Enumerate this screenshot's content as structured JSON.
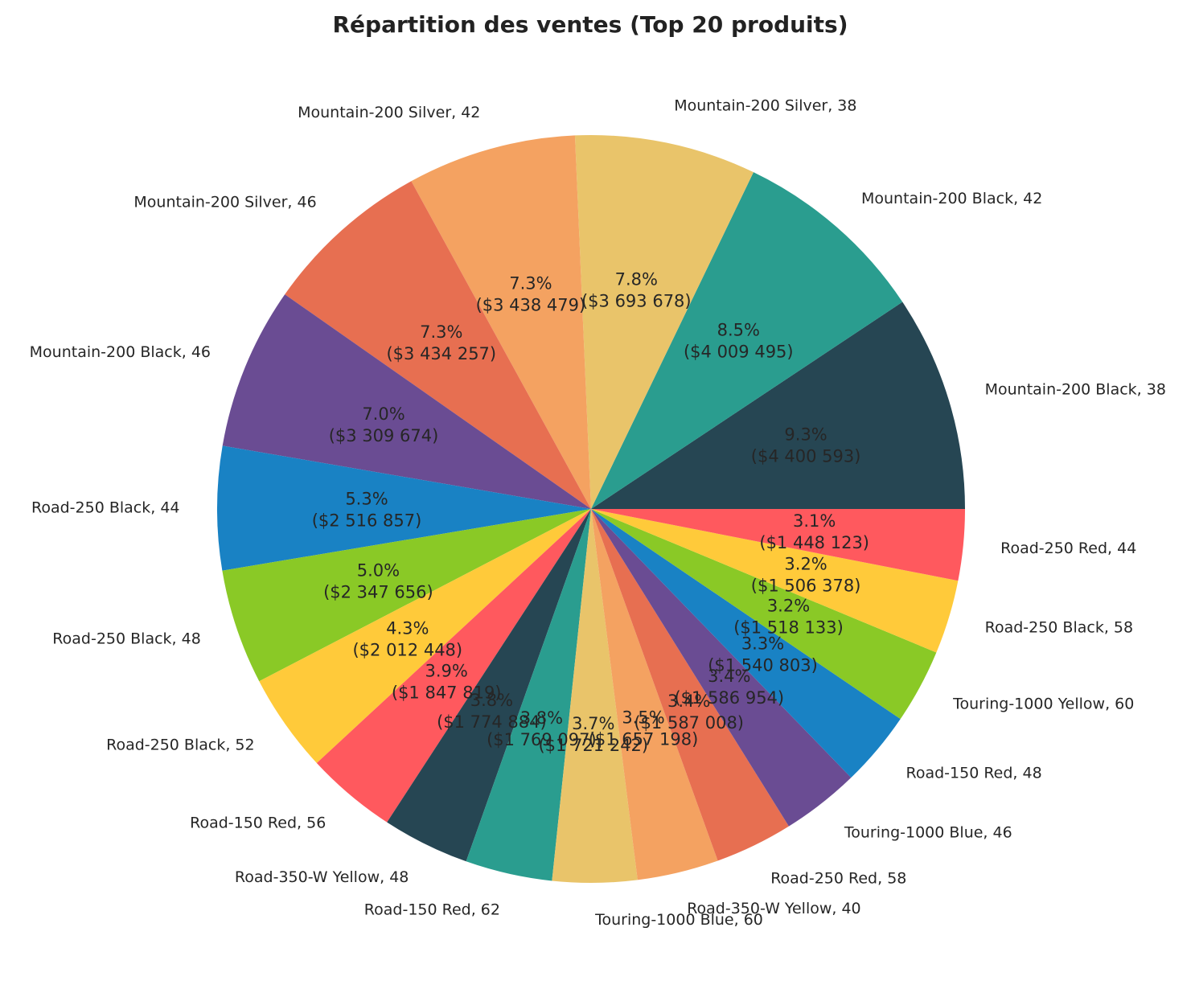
{
  "chart_data": {
    "type": "pie",
    "title": "Répartition des ventes (Top 20 produits)",
    "start_angle_deg": 0,
    "direction": "counterclockwise",
    "slices": [
      {
        "label": "Mountain-200 Black, 38",
        "value": 4400593,
        "value_text": "($4 400 593)",
        "percent": "9.3%",
        "color": "#264653"
      },
      {
        "label": "Mountain-200 Black, 42",
        "value": 4009495,
        "value_text": "($4 009 495)",
        "percent": "8.5%",
        "color": "#2a9d8f"
      },
      {
        "label": "Mountain-200 Silver, 38",
        "value": 3693678,
        "value_text": "($3 693 678)",
        "percent": "7.8%",
        "color": "#e9c46a"
      },
      {
        "label": "Mountain-200 Silver, 42",
        "value": 3438479,
        "value_text": "($3 438 479)",
        "percent": "7.3%",
        "color": "#f4a261"
      },
      {
        "label": "Mountain-200 Silver, 46",
        "value": 3434257,
        "value_text": "($3 434 257)",
        "percent": "7.3%",
        "color": "#e76f51"
      },
      {
        "label": "Mountain-200 Black, 46",
        "value": 3309674,
        "value_text": "($3 309 674)",
        "percent": "7.0%",
        "color": "#6a4c93"
      },
      {
        "label": "Road-250 Black, 44",
        "value": 2516857,
        "value_text": "($2 516 857)",
        "percent": "5.3%",
        "color": "#1982c4"
      },
      {
        "label": "Road-250 Black, 48",
        "value": 2347656,
        "value_text": "($2 347 656)",
        "percent": "5.0%",
        "color": "#8ac926"
      },
      {
        "label": "Road-250 Black, 52",
        "value": 2012448,
        "value_text": "($2 012 448)",
        "percent": "4.3%",
        "color": "#ffca3a"
      },
      {
        "label": "Road-150 Red, 56",
        "value": 1847819,
        "value_text": "($1 847 819)",
        "percent": "3.9%",
        "color": "#ff595e"
      },
      {
        "label": "Road-350-W Yellow, 48",
        "value": 1774884,
        "value_text": "($1 774 884)",
        "percent": "3.8%",
        "color": "#264653"
      },
      {
        "label": "Road-150 Red, 62",
        "value": 1769097,
        "value_text": "($1 769 097)",
        "percent": "3.8%",
        "color": "#2a9d8f"
      },
      {
        "label": "Touring-1000 Blue, 60",
        "value": 1721242,
        "value_text": "($1 721 242)",
        "percent": "3.7%",
        "color": "#e9c46a"
      },
      {
        "label": "Road-350-W Yellow, 40",
        "value": 1657198,
        "value_text": "($1 657 198)",
        "percent": "3.5%",
        "color": "#f4a261"
      },
      {
        "label": "Road-250 Red, 58",
        "value": 1587008,
        "value_text": "($1 587 008)",
        "percent": "3.4%",
        "color": "#e76f51"
      },
      {
        "label": "Touring-1000 Blue, 46",
        "value": 1586954,
        "value_text": "($1 586 954)",
        "percent": "3.4%",
        "color": "#6a4c93"
      },
      {
        "label": "Road-150 Red, 48",
        "value": 1540803,
        "value_text": "($1 540 803)",
        "percent": "3.3%",
        "color": "#1982c4"
      },
      {
        "label": "Touring-1000 Yellow, 60",
        "value": 1518133,
        "value_text": "($1 518 133)",
        "percent": "3.2%",
        "color": "#8ac926"
      },
      {
        "label": "Road-250 Black, 58",
        "value": 1506378,
        "value_text": "($1 506 378)",
        "percent": "3.2%",
        "color": "#ffca3a"
      },
      {
        "label": "Road-250 Red, 44",
        "value": 1448123,
        "value_text": "($1 448 123)",
        "percent": "3.1%",
        "color": "#ff595e"
      }
    ]
  }
}
